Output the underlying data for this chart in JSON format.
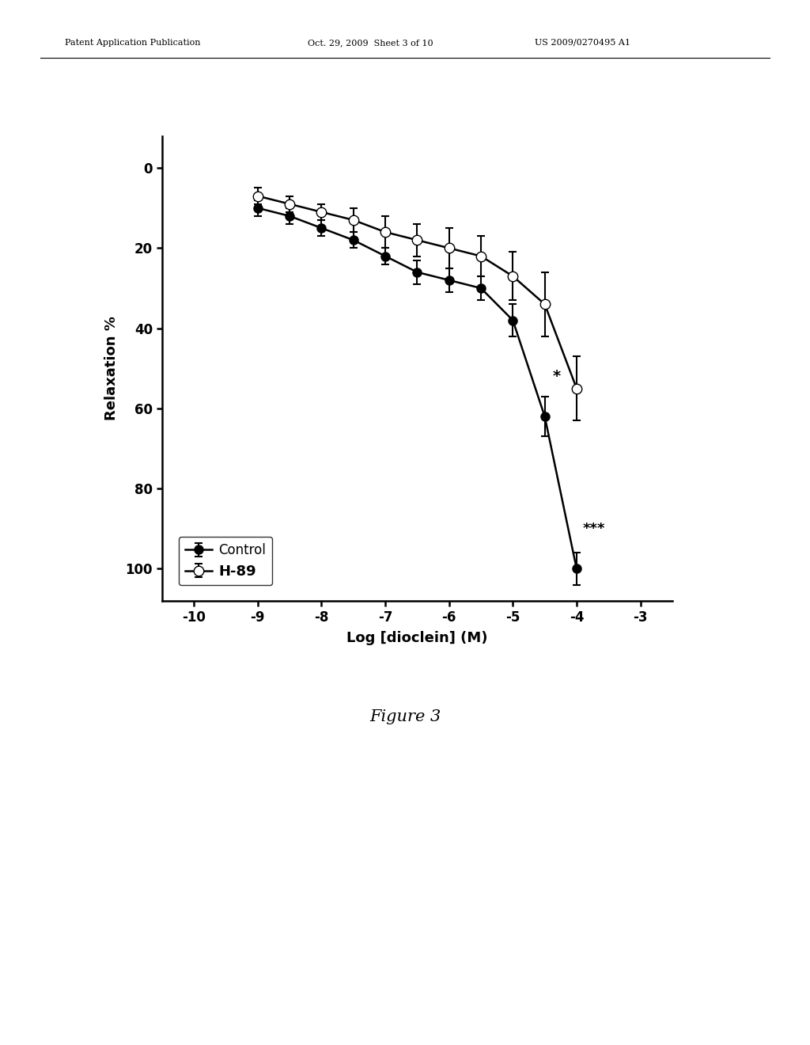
{
  "header_left": "Patent Application Publication",
  "header_mid": "Oct. 29, 2009  Sheet 3 of 10",
  "header_right": "US 2009/0270495 A1",
  "figure_label": "Figure 3",
  "xlabel": "Log [dioclein] (M)",
  "ylabel": "Relaxation %",
  "xlim": [
    -10.5,
    -2.5
  ],
  "ylim": [
    108,
    -8
  ],
  "xticks": [
    -10,
    -9,
    -8,
    -7,
    -6,
    -5,
    -4,
    -3
  ],
  "yticks": [
    0,
    20,
    40,
    60,
    80,
    100
  ],
  "control_x": [
    -9,
    -8.5,
    -8,
    -7.5,
    -7,
    -6.5,
    -6,
    -5.5,
    -5,
    -4.5,
    -4
  ],
  "control_y": [
    10,
    12,
    15,
    18,
    22,
    26,
    28,
    30,
    38,
    62,
    100
  ],
  "control_yerr": [
    2,
    2,
    2,
    2,
    2,
    3,
    3,
    3,
    4,
    5,
    4
  ],
  "h89_x": [
    -9,
    -8.5,
    -8,
    -7.5,
    -7,
    -6.5,
    -6,
    -5.5,
    -5,
    -4.5,
    -4
  ],
  "h89_y": [
    7,
    9,
    11,
    13,
    16,
    18,
    20,
    22,
    27,
    34,
    55
  ],
  "h89_yerr": [
    2,
    2,
    2,
    3,
    4,
    4,
    5,
    5,
    6,
    8,
    8
  ],
  "star_single_x": -4.5,
  "star_single_y": 52,
  "star_triple_x": -4.0,
  "star_triple_y": 90,
  "background_color": "#ffffff"
}
